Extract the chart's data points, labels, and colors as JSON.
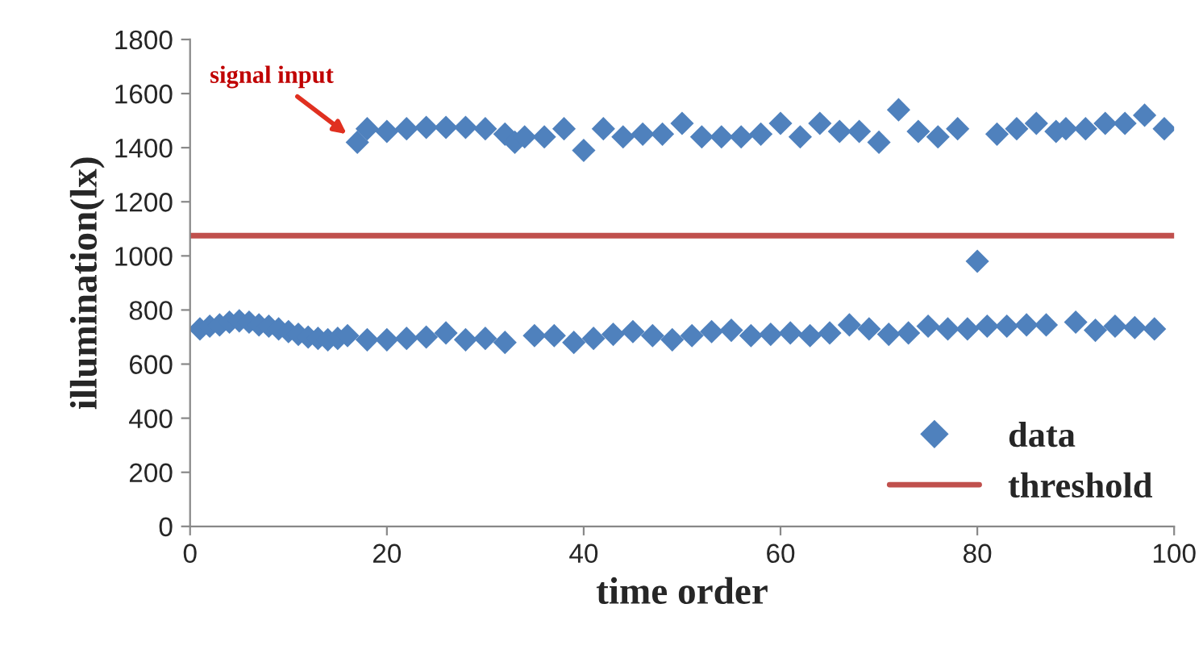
{
  "chart_data": {
    "type": "scatter",
    "xlabel": "time order",
    "ylabel": "illumination(lx)",
    "xlim": [
      0,
      100
    ],
    "xticks": [
      0,
      20,
      40,
      60,
      80,
      100
    ],
    "ylim": [
      0,
      1800
    ],
    "yticks": [
      0,
      200,
      400,
      600,
      800,
      1000,
      1200,
      1400,
      1600,
      1800
    ],
    "marker": "diamond",
    "legend": "bottom right",
    "grid": false,
    "series": [
      {
        "name": "data",
        "color": "#4f81bd",
        "x": [
          1,
          2,
          3,
          4,
          5,
          6,
          7,
          8,
          9,
          10,
          11,
          12,
          13,
          14,
          15,
          16,
          17,
          18,
          18,
          20,
          20,
          22,
          22,
          24,
          24,
          26,
          26,
          28,
          28,
          30,
          30,
          32,
          32,
          33,
          34,
          35,
          36,
          37,
          38,
          39,
          40,
          41,
          42,
          43,
          44,
          45,
          46,
          47,
          48,
          49,
          50,
          51,
          52,
          53,
          54,
          55,
          56,
          57,
          58,
          59,
          60,
          61,
          62,
          63,
          64,
          65,
          66,
          67,
          68,
          69,
          70,
          71,
          72,
          73,
          74,
          75,
          76,
          77,
          78,
          79,
          80,
          81,
          82,
          83,
          84,
          85,
          86,
          87,
          88,
          89,
          90,
          91,
          92,
          93,
          94,
          95,
          96,
          97,
          98,
          99
        ],
        "values": [
          730,
          740,
          745,
          755,
          760,
          755,
          745,
          740,
          730,
          720,
          710,
          700,
          695,
          690,
          695,
          705,
          1420,
          690,
          1470,
          690,
          1460,
          695,
          1470,
          700,
          1475,
          715,
          1475,
          690,
          1475,
          695,
          1470,
          680,
          1450,
          1420,
          1440,
          705,
          1440,
          705,
          1470,
          680,
          1390,
          695,
          1470,
          710,
          1440,
          720,
          1450,
          705,
          1450,
          690,
          1490,
          705,
          1440,
          720,
          1440,
          725,
          1440,
          705,
          1450,
          710,
          1490,
          715,
          1440,
          705,
          1490,
          715,
          1460,
          745,
          1460,
          730,
          1420,
          710,
          1540,
          715,
          1460,
          740,
          1440,
          730,
          1470,
          730,
          980,
          740,
          1450,
          740,
          1470,
          745,
          1490,
          745,
          1460,
          1470,
          755,
          1470,
          725,
          1490,
          740,
          1490,
          735,
          1520,
          730,
          1470
        ]
      },
      {
        "name": "threshold",
        "type": "line",
        "color": "#c0504d",
        "x": [
          0,
          100
        ],
        "values": [
          1075,
          1075
        ],
        "marker": "none",
        "line_style": "solid"
      }
    ],
    "annotations": [
      {
        "text": "signal input",
        "x": 17,
        "y": 1420
      }
    ]
  }
}
